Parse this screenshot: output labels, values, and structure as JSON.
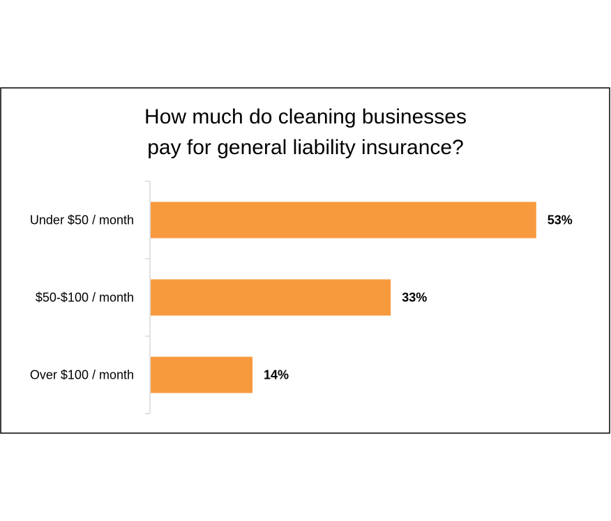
{
  "chart_data": {
    "type": "bar",
    "orientation": "horizontal",
    "title": "How much do cleaning businesses pay for general liability insurance?",
    "categories": [
      "Under $50 / month",
      "$50-$100 / month",
      "Over $100 / month"
    ],
    "values": [
      53,
      33,
      14
    ],
    "value_labels": [
      "53%",
      "33%",
      "14%"
    ],
    "color": "#f79a3e"
  }
}
